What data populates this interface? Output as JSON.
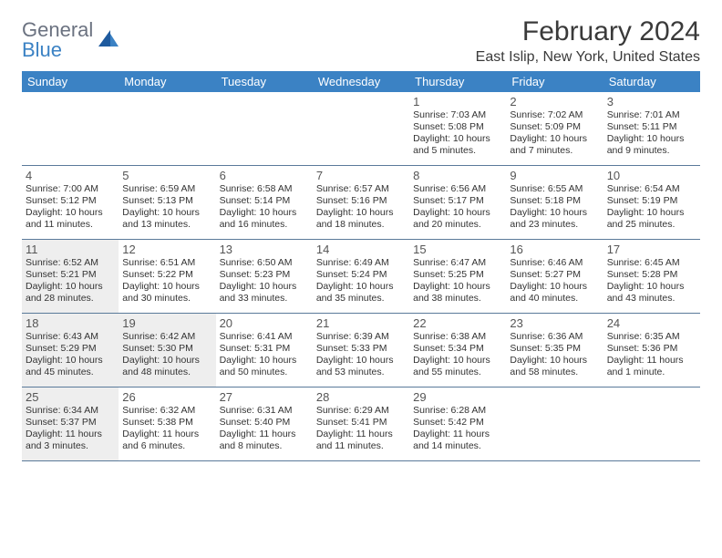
{
  "logo": {
    "word1": "General",
    "word2": "Blue"
  },
  "colors": {
    "header_bg": "#3b82c4",
    "header_text": "#ffffff",
    "rule": "#5a7a9a",
    "shade": "#eeeeee",
    "text": "#333333",
    "logo_gray": "#6b7280",
    "logo_blue": "#3b82c4"
  },
  "title": "February 2024",
  "location": "East Islip, New York, United States",
  "weekdays": [
    "Sunday",
    "Monday",
    "Tuesday",
    "Wednesday",
    "Thursday",
    "Friday",
    "Saturday"
  ],
  "weeks": [
    [
      {
        "n": "",
        "shaded": false
      },
      {
        "n": "",
        "shaded": false
      },
      {
        "n": "",
        "shaded": false
      },
      {
        "n": "",
        "shaded": false
      },
      {
        "n": "1",
        "shaded": false,
        "sr": "Sunrise: 7:03 AM",
        "ss": "Sunset: 5:08 PM",
        "d1": "Daylight: 10 hours",
        "d2": "and 5 minutes."
      },
      {
        "n": "2",
        "shaded": false,
        "sr": "Sunrise: 7:02 AM",
        "ss": "Sunset: 5:09 PM",
        "d1": "Daylight: 10 hours",
        "d2": "and 7 minutes."
      },
      {
        "n": "3",
        "shaded": false,
        "sr": "Sunrise: 7:01 AM",
        "ss": "Sunset: 5:11 PM",
        "d1": "Daylight: 10 hours",
        "d2": "and 9 minutes."
      }
    ],
    [
      {
        "n": "4",
        "shaded": false,
        "sr": "Sunrise: 7:00 AM",
        "ss": "Sunset: 5:12 PM",
        "d1": "Daylight: 10 hours",
        "d2": "and 11 minutes."
      },
      {
        "n": "5",
        "shaded": false,
        "sr": "Sunrise: 6:59 AM",
        "ss": "Sunset: 5:13 PM",
        "d1": "Daylight: 10 hours",
        "d2": "and 13 minutes."
      },
      {
        "n": "6",
        "shaded": false,
        "sr": "Sunrise: 6:58 AM",
        "ss": "Sunset: 5:14 PM",
        "d1": "Daylight: 10 hours",
        "d2": "and 16 minutes."
      },
      {
        "n": "7",
        "shaded": false,
        "sr": "Sunrise: 6:57 AM",
        "ss": "Sunset: 5:16 PM",
        "d1": "Daylight: 10 hours",
        "d2": "and 18 minutes."
      },
      {
        "n": "8",
        "shaded": false,
        "sr": "Sunrise: 6:56 AM",
        "ss": "Sunset: 5:17 PM",
        "d1": "Daylight: 10 hours",
        "d2": "and 20 minutes."
      },
      {
        "n": "9",
        "shaded": false,
        "sr": "Sunrise: 6:55 AM",
        "ss": "Sunset: 5:18 PM",
        "d1": "Daylight: 10 hours",
        "d2": "and 23 minutes."
      },
      {
        "n": "10",
        "shaded": false,
        "sr": "Sunrise: 6:54 AM",
        "ss": "Sunset: 5:19 PM",
        "d1": "Daylight: 10 hours",
        "d2": "and 25 minutes."
      }
    ],
    [
      {
        "n": "11",
        "shaded": true,
        "sr": "Sunrise: 6:52 AM",
        "ss": "Sunset: 5:21 PM",
        "d1": "Daylight: 10 hours",
        "d2": "and 28 minutes."
      },
      {
        "n": "12",
        "shaded": false,
        "sr": "Sunrise: 6:51 AM",
        "ss": "Sunset: 5:22 PM",
        "d1": "Daylight: 10 hours",
        "d2": "and 30 minutes."
      },
      {
        "n": "13",
        "shaded": false,
        "sr": "Sunrise: 6:50 AM",
        "ss": "Sunset: 5:23 PM",
        "d1": "Daylight: 10 hours",
        "d2": "and 33 minutes."
      },
      {
        "n": "14",
        "shaded": false,
        "sr": "Sunrise: 6:49 AM",
        "ss": "Sunset: 5:24 PM",
        "d1": "Daylight: 10 hours",
        "d2": "and 35 minutes."
      },
      {
        "n": "15",
        "shaded": false,
        "sr": "Sunrise: 6:47 AM",
        "ss": "Sunset: 5:25 PM",
        "d1": "Daylight: 10 hours",
        "d2": "and 38 minutes."
      },
      {
        "n": "16",
        "shaded": false,
        "sr": "Sunrise: 6:46 AM",
        "ss": "Sunset: 5:27 PM",
        "d1": "Daylight: 10 hours",
        "d2": "and 40 minutes."
      },
      {
        "n": "17",
        "shaded": false,
        "sr": "Sunrise: 6:45 AM",
        "ss": "Sunset: 5:28 PM",
        "d1": "Daylight: 10 hours",
        "d2": "and 43 minutes."
      }
    ],
    [
      {
        "n": "18",
        "shaded": true,
        "sr": "Sunrise: 6:43 AM",
        "ss": "Sunset: 5:29 PM",
        "d1": "Daylight: 10 hours",
        "d2": "and 45 minutes."
      },
      {
        "n": "19",
        "shaded": true,
        "sr": "Sunrise: 6:42 AM",
        "ss": "Sunset: 5:30 PM",
        "d1": "Daylight: 10 hours",
        "d2": "and 48 minutes."
      },
      {
        "n": "20",
        "shaded": false,
        "sr": "Sunrise: 6:41 AM",
        "ss": "Sunset: 5:31 PM",
        "d1": "Daylight: 10 hours",
        "d2": "and 50 minutes."
      },
      {
        "n": "21",
        "shaded": false,
        "sr": "Sunrise: 6:39 AM",
        "ss": "Sunset: 5:33 PM",
        "d1": "Daylight: 10 hours",
        "d2": "and 53 minutes."
      },
      {
        "n": "22",
        "shaded": false,
        "sr": "Sunrise: 6:38 AM",
        "ss": "Sunset: 5:34 PM",
        "d1": "Daylight: 10 hours",
        "d2": "and 55 minutes."
      },
      {
        "n": "23",
        "shaded": false,
        "sr": "Sunrise: 6:36 AM",
        "ss": "Sunset: 5:35 PM",
        "d1": "Daylight: 10 hours",
        "d2": "and 58 minutes."
      },
      {
        "n": "24",
        "shaded": false,
        "sr": "Sunrise: 6:35 AM",
        "ss": "Sunset: 5:36 PM",
        "d1": "Daylight: 11 hours",
        "d2": "and 1 minute."
      }
    ],
    [
      {
        "n": "25",
        "shaded": true,
        "sr": "Sunrise: 6:34 AM",
        "ss": "Sunset: 5:37 PM",
        "d1": "Daylight: 11 hours",
        "d2": "and 3 minutes."
      },
      {
        "n": "26",
        "shaded": false,
        "sr": "Sunrise: 6:32 AM",
        "ss": "Sunset: 5:38 PM",
        "d1": "Daylight: 11 hours",
        "d2": "and 6 minutes."
      },
      {
        "n": "27",
        "shaded": false,
        "sr": "Sunrise: 6:31 AM",
        "ss": "Sunset: 5:40 PM",
        "d1": "Daylight: 11 hours",
        "d2": "and 8 minutes."
      },
      {
        "n": "28",
        "shaded": false,
        "sr": "Sunrise: 6:29 AM",
        "ss": "Sunset: 5:41 PM",
        "d1": "Daylight: 11 hours",
        "d2": "and 11 minutes."
      },
      {
        "n": "29",
        "shaded": false,
        "sr": "Sunrise: 6:28 AM",
        "ss": "Sunset: 5:42 PM",
        "d1": "Daylight: 11 hours",
        "d2": "and 14 minutes."
      },
      {
        "n": "",
        "shaded": false
      },
      {
        "n": "",
        "shaded": false
      }
    ]
  ]
}
